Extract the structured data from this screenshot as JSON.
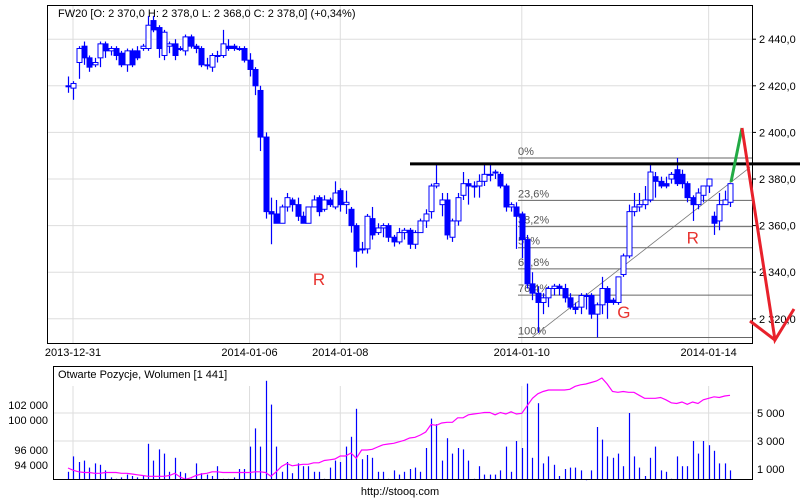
{
  "footer": "http://stooq.com",
  "colors": {
    "candle": "#0000ff",
    "oi_line": "#ff00ff",
    "volume": "#0000ff",
    "resistance": "#000000",
    "projection_up": "#22aa44",
    "projection_down": "#e8212b",
    "annotation": "#e8332f",
    "grid": "#dddddd"
  },
  "chart_data": [
    {
      "type": "candlestick",
      "title": "FW20 [O: 2 370,0  H: 2 378,0  L: 2 368,0  C: 2 378,0] (+0,34%)",
      "ylim": [
        2308,
        2456
      ],
      "yticks": [
        2440,
        2420,
        2400,
        2380,
        2360,
        2340,
        2320
      ],
      "ytick_labels": [
        "2 440,0",
        "2 420,0",
        "2 400,0",
        "2 380,0",
        "2 360,0",
        "2 340,0",
        "2 320,0"
      ],
      "xtick_labels": [
        {
          "label": "2013-12-31",
          "index": 1
        },
        {
          "label": "2014-01-06",
          "index": 35
        },
        {
          "label": "2014-01-08",
          "index": 52
        },
        {
          "label": "2014-01-10",
          "index": 86
        },
        {
          "label": "2014-01-14",
          "index": 121
        }
      ],
      "grid": true,
      "ohlc": [
        [
          2420,
          2424,
          2417,
          2420
        ],
        [
          2419,
          2422,
          2414,
          2421
        ],
        [
          2430,
          2437,
          2423,
          2436
        ],
        [
          2437,
          2439,
          2429,
          2432
        ],
        [
          2432,
          2433,
          2426,
          2428
        ],
        [
          2429,
          2432,
          2428,
          2430
        ],
        [
          2432,
          2439,
          2428,
          2438
        ],
        [
          2438,
          2439,
          2432,
          2435
        ],
        [
          2435,
          2437,
          2433,
          2436
        ],
        [
          2436,
          2437,
          2431,
          2433
        ],
        [
          2434,
          2435,
          2428,
          2429
        ],
        [
          2429,
          2436,
          2426,
          2435
        ],
        [
          2435,
          2436,
          2428,
          2429
        ],
        [
          2435,
          2437,
          2431,
          2432
        ],
        [
          2436,
          2438,
          2435,
          2437
        ],
        [
          2436,
          2450,
          2435,
          2446
        ],
        [
          2448,
          2450,
          2443,
          2444
        ],
        [
          2445,
          2446,
          2432,
          2436
        ],
        [
          2433,
          2444,
          2431,
          2443
        ],
        [
          2437,
          2439,
          2434,
          2438
        ],
        [
          2438,
          2440,
          2431,
          2433
        ],
        [
          2436,
          2437,
          2435,
          2436
        ],
        [
          2435,
          2442,
          2433,
          2441
        ],
        [
          2441,
          2442,
          2436,
          2437
        ],
        [
          2437,
          2438,
          2434,
          2436
        ],
        [
          2436,
          2437,
          2428,
          2429
        ],
        [
          2429,
          2432,
          2427,
          2429
        ],
        [
          2428,
          2434,
          2426,
          2433
        ],
        [
          2433,
          2435,
          2430,
          2433
        ],
        [
          2433,
          2444,
          2432,
          2438
        ],
        [
          2437,
          2440,
          2435,
          2436
        ],
        [
          2437,
          2438,
          2435,
          2436
        ],
        [
          2436,
          2437,
          2435,
          2436
        ],
        [
          2436,
          2437,
          2430,
          2431
        ],
        [
          2431,
          2434,
          2424,
          2427
        ],
        [
          2427,
          2428,
          2416,
          2420
        ],
        [
          2418,
          2420,
          2392,
          2398
        ],
        [
          2398,
          2400,
          2363,
          2366
        ],
        [
          2366,
          2372,
          2352,
          2365
        ],
        [
          2365,
          2371,
          2361,
          2361
        ],
        [
          2361,
          2369,
          2361,
          2368
        ],
        [
          2368,
          2374,
          2366,
          2372
        ],
        [
          2371,
          2372,
          2366,
          2369
        ],
        [
          2369,
          2372,
          2362,
          2364
        ],
        [
          2364,
          2366,
          2361,
          2361
        ],
        [
          2361,
          2368,
          2361,
          2368
        ],
        [
          2368,
          2373,
          2368,
          2371
        ],
        [
          2372,
          2373,
          2364,
          2366
        ],
        [
          2367,
          2373,
          2366,
          2371
        ],
        [
          2371,
          2372,
          2368,
          2369
        ],
        [
          2368,
          2379,
          2367,
          2374
        ],
        [
          2375,
          2376,
          2366,
          2369
        ],
        [
          2369,
          2375,
          2365,
          2370
        ],
        [
          2367,
          2368,
          2357,
          2360
        ],
        [
          2360,
          2361,
          2342,
          2349
        ],
        [
          2350,
          2353,
          2348,
          2350
        ],
        [
          2350,
          2365,
          2348,
          2364
        ],
        [
          2363,
          2368,
          2354,
          2356
        ],
        [
          2357,
          2361,
          2356,
          2359
        ],
        [
          2359,
          2361,
          2355,
          2360
        ],
        [
          2360,
          2361,
          2353,
          2355
        ],
        [
          2355,
          2356,
          2351,
          2353
        ],
        [
          2353,
          2359,
          2352,
          2357
        ],
        [
          2357,
          2359,
          2354,
          2358
        ],
        [
          2358,
          2359,
          2350,
          2352
        ],
        [
          2352,
          2358,
          2350,
          2357
        ],
        [
          2357,
          2363,
          2357,
          2362
        ],
        [
          2362,
          2367,
          2359,
          2365
        ],
        [
          2366,
          2378,
          2363,
          2377
        ],
        [
          2377,
          2387,
          2376,
          2378
        ],
        [
          2369,
          2374,
          2364,
          2371
        ],
        [
          2371,
          2374,
          2354,
          2356
        ],
        [
          2355,
          2363,
          2353,
          2362
        ],
        [
          2362,
          2374,
          2360,
          2372
        ],
        [
          2373,
          2383,
          2371,
          2378
        ],
        [
          2378,
          2380,
          2369,
          2377
        ],
        [
          2377,
          2379,
          2372,
          2377
        ],
        [
          2377,
          2382,
          2372,
          2379
        ],
        [
          2379,
          2387,
          2377,
          2382
        ],
        [
          2382,
          2387,
          2379,
          2382
        ],
        [
          2383,
          2384,
          2380,
          2383
        ],
        [
          2382,
          2383,
          2376,
          2377
        ],
        [
          2377,
          2378,
          2366,
          2368
        ],
        [
          2368,
          2370,
          2366,
          2369
        ],
        [
          2368,
          2370,
          2350,
          2364
        ],
        [
          2365,
          2366,
          2346,
          2354
        ],
        [
          2354,
          2356,
          2333,
          2335
        ],
        [
          2335,
          2340,
          2328,
          2331
        ],
        [
          2331,
          2334,
          2314,
          2327
        ],
        [
          2327,
          2331,
          2322,
          2329
        ],
        [
          2329,
          2334,
          2325,
          2333
        ],
        [
          2333,
          2335,
          2330,
          2334
        ],
        [
          2334,
          2335,
          2330,
          2333
        ],
        [
          2333,
          2335,
          2327,
          2329
        ],
        [
          2329,
          2331,
          2324,
          2325
        ],
        [
          2325,
          2327,
          2322,
          2324
        ],
        [
          2325,
          2331,
          2322,
          2330
        ],
        [
          2330,
          2331,
          2324,
          2330
        ],
        [
          2330,
          2331,
          2320,
          2322
        ],
        [
          2322,
          2327,
          2312,
          2326
        ],
        [
          2326,
          2338,
          2322,
          2333
        ],
        [
          2333,
          2334,
          2320,
          2327
        ],
        [
          2328,
          2329,
          2326,
          2327
        ],
        [
          2327,
          2338,
          2326,
          2338
        ],
        [
          2339,
          2348,
          2338,
          2347
        ],
        [
          2347,
          2369,
          2346,
          2366
        ],
        [
          2366,
          2374,
          2364,
          2368
        ],
        [
          2368,
          2374,
          2366,
          2369
        ],
        [
          2369,
          2377,
          2367,
          2371
        ],
        [
          2371,
          2386,
          2370,
          2383
        ],
        [
          2381,
          2383,
          2372,
          2379
        ],
        [
          2379,
          2381,
          2376,
          2377
        ],
        [
          2378,
          2381,
          2376,
          2377
        ],
        [
          2380,
          2383,
          2378,
          2382
        ],
        [
          2384,
          2389,
          2377,
          2378
        ],
        [
          2382,
          2384,
          2376,
          2378
        ],
        [
          2378,
          2379,
          2370,
          2372
        ],
        [
          2372,
          2373,
          2362,
          2369
        ],
        [
          2369,
          2376,
          2367,
          2374
        ],
        [
          2373,
          2377,
          2370,
          2377
        ],
        [
          2377,
          2380,
          2374,
          2380
        ],
        [
          2364,
          2366,
          2356,
          2361
        ],
        [
          2362,
          2374,
          2358,
          2369
        ],
        [
          2369,
          2375,
          2369,
          2371
        ],
        [
          2370,
          2378,
          2368,
          2378
        ]
      ],
      "resistance_level": 2386.5,
      "fibonacci": {
        "high": 2389,
        "low": 2312,
        "levels": [
          {
            "label": "0%",
            "ratio": 0
          },
          {
            "label": "23,6%",
            "ratio": 0.236
          },
          {
            "label": "38,2%",
            "ratio": 0.382
          },
          {
            "label": "50%",
            "ratio": 0.5
          },
          {
            "label": "61,8%",
            "ratio": 0.618
          },
          {
            "label": "76,4%",
            "ratio": 0.764
          },
          {
            "label": "100%",
            "ratio": 1
          }
        ]
      },
      "annotations": [
        {
          "text": "R",
          "index": 48,
          "price": 2337
        },
        {
          "text": "G",
          "index": 105,
          "price": 2323
        },
        {
          "text": "R",
          "index": 118,
          "price": 2355
        }
      ]
    },
    {
      "type": "bar",
      "title": "Otwarte Pozycje, Wolumen [1 441]",
      "grid": true,
      "left_axis": {
        "ticks": [
          102000,
          100000,
          96000,
          94000
        ],
        "labels": [
          "102 000",
          "100 000",
          "96 000",
          "94 000"
        ]
      },
      "right_axis": {
        "ticks": [
          5000,
          3000,
          1000
        ],
        "labels": [
          "5 000",
          "3 000",
          "1 000"
        ]
      },
      "series": [
        {
          "type": "bar",
          "axis": "right",
          "values": [
            800,
            1900,
            1500,
            1600,
            1100,
            1400,
            1300,
            900,
            400,
            300,
            400,
            600,
            500,
            400,
            500,
            2800,
            1600,
            2400,
            2100,
            800,
            1800,
            800,
            700,
            300,
            1400,
            700,
            600,
            500,
            1200,
            300,
            300,
            400,
            1000,
            1000,
            2600,
            3900,
            2600,
            7300,
            5600,
            2600,
            800,
            1500,
            700,
            1400,
            1200,
            1200,
            800,
            800,
            300,
            1100,
            1600,
            1500,
            2600,
            3300,
            5300,
            1700,
            2000,
            1800,
            800,
            800,
            300,
            900,
            600,
            800,
            1000,
            1100,
            800,
            2500,
            4600,
            4200,
            1600,
            3200,
            2100,
            2500,
            2400,
            1600,
            300,
            1200,
            600,
            600,
            600,
            900,
            2600,
            800,
            3000,
            2500,
            7100,
            1800,
            5700,
            1400,
            1900,
            1300,
            500,
            1000,
            1100,
            1100,
            900,
            200,
            900,
            4000,
            3100,
            1900,
            1800,
            2100,
            1200,
            5000,
            1900,
            1100,
            500,
            1800,
            2600,
            900,
            800,
            300,
            1900,
            1200,
            1200,
            3000,
            2100,
            3000,
            2700,
            2300,
            1400,
            1400,
            900
          ]
        },
        {
          "type": "line",
          "axis": "left",
          "values": [
            93600,
            93300,
            93100,
            93000,
            93000,
            92900,
            92900,
            93000,
            93000,
            93000,
            92900,
            92900,
            92800,
            92700,
            92600,
            92500,
            92500,
            92500,
            92500,
            92600,
            92900,
            92400,
            92100,
            92300,
            92600,
            92800,
            92900,
            93100,
            93100,
            93000,
            93000,
            93000,
            93000,
            93000,
            93000,
            93100,
            93100,
            93000,
            92500,
            93100,
            93800,
            94200,
            93900,
            94000,
            94100,
            94100,
            94300,
            94300,
            94600,
            94700,
            94800,
            95200,
            95200,
            95600,
            94900,
            96000,
            96000,
            96100,
            96400,
            96700,
            96800,
            96900,
            97100,
            97300,
            97600,
            97700,
            98000,
            98400,
            99400,
            99300,
            99600,
            99700,
            99700,
            100300,
            100300,
            100700,
            100800,
            100900,
            101000,
            101000,
            100700,
            101000,
            100800,
            101100,
            100800,
            100900,
            101900,
            102900,
            103500,
            103800,
            104000,
            104000,
            104000,
            104000,
            104100,
            104500,
            104700,
            104800,
            105000,
            105200,
            105600,
            104800,
            103800,
            103700,
            103800,
            103700,
            103700,
            103300,
            102900,
            102900,
            102900,
            103000,
            102700,
            102300,
            102200,
            102400,
            102100,
            102400,
            102200,
            102700,
            102900,
            103100,
            103000,
            103200,
            103300
          ]
        }
      ]
    }
  ]
}
